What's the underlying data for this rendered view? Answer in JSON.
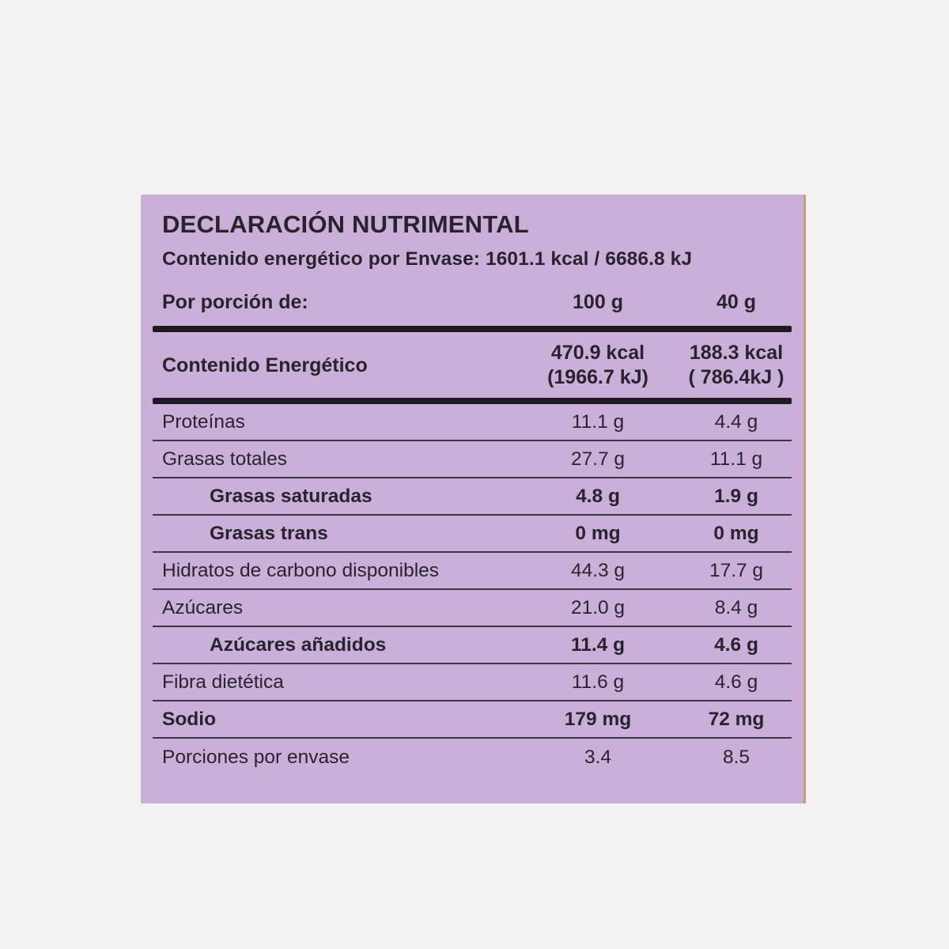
{
  "colors": {
    "page-bg": "#f2f2f2",
    "card-bg": "#cab0d8",
    "text": "#29232f",
    "divider": "#3e3548",
    "bar": "#1e1923",
    "edge": "#c79c86"
  },
  "label": {
    "title": "DECLARACIÓN NUTRIMENTAL",
    "subtitle": "Contenido energético por Envase: 1601.1 kcal / 6686.8 kJ",
    "serving": {
      "label": "Por porción de:",
      "col1": "100 g",
      "col2": "40 g"
    },
    "energy": {
      "label": "Contenido Energético",
      "col1_line1": "470.9 kcal",
      "col1_line2": "(1966.7 kJ)",
      "col2_line1": "188.3 kcal",
      "col2_line2": "( 786.4kJ )"
    },
    "rows": [
      {
        "label": "Proteínas",
        "col1": "11.1 g",
        "col2": "4.4 g",
        "bold": false,
        "indent": false
      },
      {
        "label": "Grasas totales",
        "col1": "27.7 g",
        "col2": "11.1 g",
        "bold": false,
        "indent": false
      },
      {
        "label": "Grasas saturadas",
        "col1": "4.8 g",
        "col2": "1.9 g",
        "bold": true,
        "indent": true
      },
      {
        "label": "Grasas trans",
        "col1": "0 mg",
        "col2": "0 mg",
        "bold": true,
        "indent": true
      },
      {
        "label": "Hidratos de carbono disponibles",
        "col1": "44.3 g",
        "col2": "17.7 g",
        "bold": false,
        "indent": false
      },
      {
        "label": "Azúcares",
        "col1": "21.0 g",
        "col2": "8.4 g",
        "bold": false,
        "indent": false
      },
      {
        "label": "Azúcares añadidos",
        "col1": "11.4 g",
        "col2": "4.6 g",
        "bold": true,
        "indent": true
      },
      {
        "label": "Fibra dietética",
        "col1": "11.6 g",
        "col2": "4.6 g",
        "bold": false,
        "indent": false
      },
      {
        "label": "Sodio",
        "col1": "179 mg",
        "col2": "72 mg",
        "bold": true,
        "indent": false
      },
      {
        "label": "Porciones por envase",
        "col1": "3.4",
        "col2": "8.5",
        "bold": false,
        "indent": false
      }
    ]
  }
}
